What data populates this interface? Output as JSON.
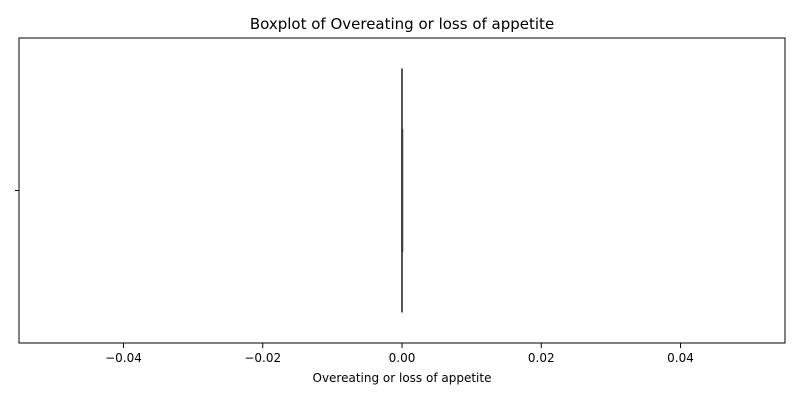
{
  "chart_data": {
    "type": "boxplot",
    "orientation": "horizontal",
    "title": "Boxplot of Overeating or loss of appetite",
    "xlabel": "Overeating or loss of appetite",
    "ylabel": "",
    "xlim": [
      -0.055,
      0.055
    ],
    "x_ticks": [
      -0.04,
      -0.02,
      0.0,
      0.02,
      0.04
    ],
    "x_tick_labels": [
      "−0.04",
      "−0.02",
      "0.00",
      "0.02",
      "0.04"
    ],
    "categories": [
      ""
    ],
    "series": [
      {
        "min": 0,
        "q1": 0,
        "median": 0,
        "q3": 0,
        "max": 0,
        "outliers": []
      }
    ],
    "grid": false,
    "colors": {
      "box_line": "#3f3f3f",
      "axes": "#000000"
    }
  }
}
